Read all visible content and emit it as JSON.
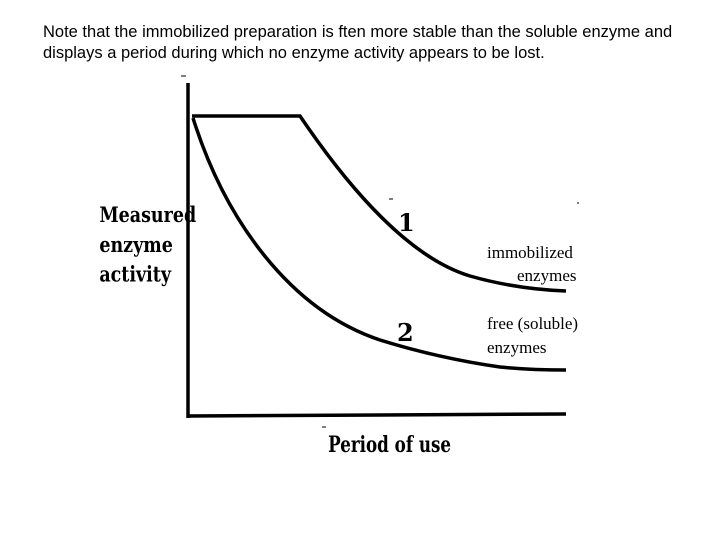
{
  "note": "Note that the immobilized preparation is ften more stable than the soluble enzyme and displays a period during which no enzyme activity appears to  be lost.",
  "diagram": {
    "y_axis_label": [
      "Measured",
      "enzyme",
      "activity"
    ],
    "x_axis_label": "Period of use",
    "curve_1_number": "1",
    "curve_2_number": "2",
    "curve_1_label": [
      "immobilized",
      "enzymes"
    ],
    "curve_2_label": [
      "free (soluble)",
      "enzymes"
    ]
  },
  "colors": {
    "ink": "#000000",
    "background": "#ffffff"
  }
}
